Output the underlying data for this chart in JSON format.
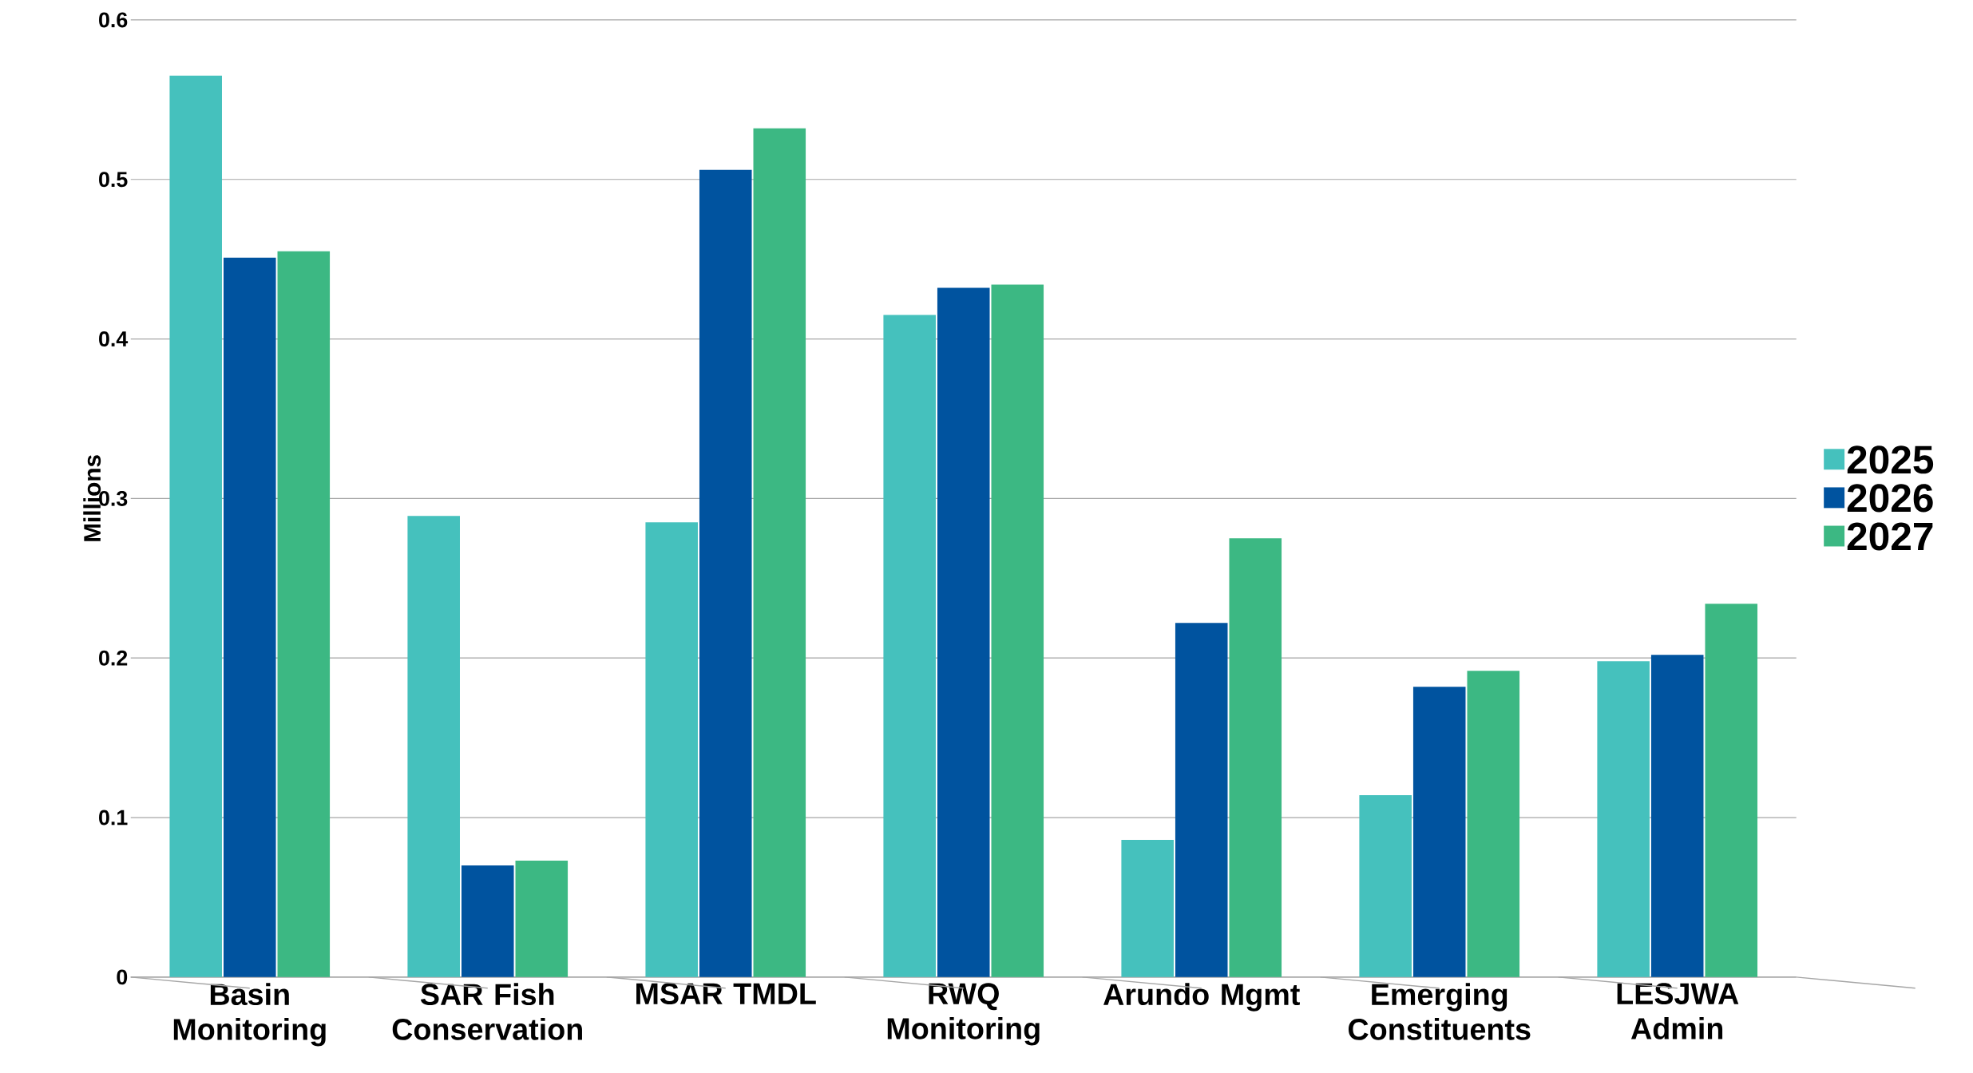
{
  "chart_data": {
    "type": "bar",
    "ylabel": "Millions",
    "categories": [
      "Basin Monitoring",
      "SAR Fish Conservation",
      "MSAR TMDL",
      "RWQ Monitoring",
      "Arundo Mgmt",
      "Emerging Constituents",
      "LESJWA Admin"
    ],
    "series": [
      {
        "name": "2025",
        "color": "#45c1bd",
        "values": [
          0.565,
          0.289,
          0.285,
          0.415,
          0.086,
          0.114,
          0.198
        ]
      },
      {
        "name": "2026",
        "color": "#00539f",
        "values": [
          0.451,
          0.07,
          0.506,
          0.432,
          0.222,
          0.182,
          0.202
        ]
      },
      {
        "name": "2027",
        "color": "#3cb883",
        "values": [
          0.455,
          0.073,
          0.532,
          0.434,
          0.275,
          0.192,
          0.234
        ]
      }
    ],
    "ylim": [
      0,
      0.6
    ],
    "yticks": [
      0,
      0.1,
      0.2,
      0.3,
      0.4,
      0.5,
      0.6
    ],
    "grid": "y",
    "legend": "right"
  }
}
